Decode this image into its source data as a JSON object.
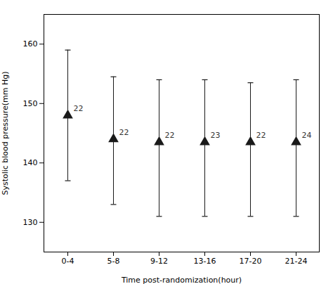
{
  "chart_data": {
    "type": "errorbar",
    "categories": [
      "0-4",
      "5-8",
      "9-12",
      "13-16",
      "17-20",
      "21-24"
    ],
    "values": [
      148.0,
      144.0,
      143.5,
      143.5,
      143.5,
      143.5
    ],
    "error_upper": [
      11.0,
      10.5,
      10.5,
      10.5,
      10.0,
      10.5
    ],
    "error_lower": [
      11.0,
      11.0,
      12.5,
      12.5,
      12.5,
      12.5
    ],
    "point_labels": [
      "22",
      "22",
      "22",
      "23",
      "22",
      "24"
    ],
    "xlabel": "Time post-randomization(hour)",
    "ylabel": "Systolic blood pressure(mm Hg)",
    "ylim": [
      125,
      165
    ],
    "yticks": [
      130,
      140,
      150,
      160
    ],
    "color": "#1a1a1a",
    "marker": "triangle"
  }
}
